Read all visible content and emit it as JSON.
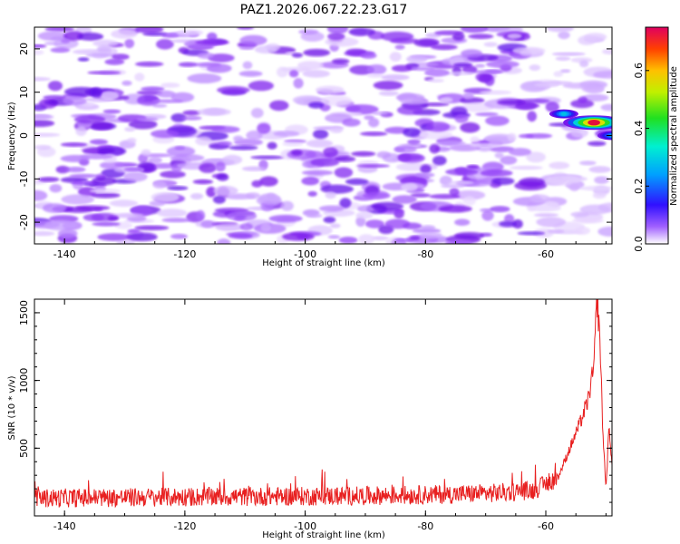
{
  "title": "PAZ1.2026.067.22.23.G17",
  "colors": {
    "snr_line": "#e82020",
    "frame": "#000000"
  },
  "chart_data": [
    {
      "type": "heatmap",
      "xlabel": "Height of straight line (km)",
      "ylabel": "Frequency (Hz)",
      "xlim": [
        -145,
        -49
      ],
      "ylim": [
        -25,
        25
      ],
      "xticks": [
        "-140",
        "-120",
        "-100",
        "-80",
        "-60"
      ],
      "yticks": [
        "-20",
        "-10",
        "0",
        "10",
        "20"
      ],
      "xtick_values": [
        -140,
        -120,
        -100,
        -80,
        -60
      ],
      "ytick_values": [
        -20,
        -10,
        0,
        10,
        20
      ],
      "colorbar": {
        "label": "Normalized spectral amplitude",
        "range": [
          0.0,
          0.75
        ],
        "ticks": [
          "0.0",
          "0.2",
          "0.4",
          "0.6"
        ],
        "tick_values": [
          0.0,
          0.2,
          0.4,
          0.6
        ]
      },
      "background_amplitude_range": [
        0.0,
        0.15
      ],
      "peak": {
        "height_km": -52,
        "frequency_hz": 3,
        "amplitude": 0.75
      },
      "secondary_features": [
        {
          "height_km": -57,
          "frequency_hz": 5,
          "amplitude": 0.35
        },
        {
          "height_km": -49,
          "frequency_hz": 0,
          "amplitude": 0.3
        }
      ]
    },
    {
      "type": "line",
      "xlabel": "Height of straight line (km)",
      "ylabel": "SNR (10 * v/v)",
      "xlim": [
        -145,
        -49
      ],
      "ylim": [
        0,
        1600
      ],
      "xticks": [
        "-140",
        "-120",
        "-100",
        "-80",
        "-60"
      ],
      "yticks": [
        "500",
        "1000",
        "1500"
      ],
      "xtick_values": [
        -140,
        -120,
        -100,
        -80,
        -60
      ],
      "ytick_values": [
        500,
        1000,
        1500
      ],
      "series": [
        {
          "name": "SNR",
          "baseline_mean": 130,
          "baseline_spread": 70,
          "x": [
            -145,
            -120,
            -100,
            -88,
            -75,
            -68,
            -62,
            -58,
            -56,
            -54,
            -53,
            -52,
            -51.5,
            -51,
            -50.5,
            -50,
            -49.5,
            -49
          ],
          "values": [
            130,
            140,
            145,
            150,
            160,
            170,
            190,
            280,
            500,
            720,
            850,
            1100,
            1620,
            1300,
            600,
            200,
            650,
            400
          ]
        }
      ]
    }
  ]
}
